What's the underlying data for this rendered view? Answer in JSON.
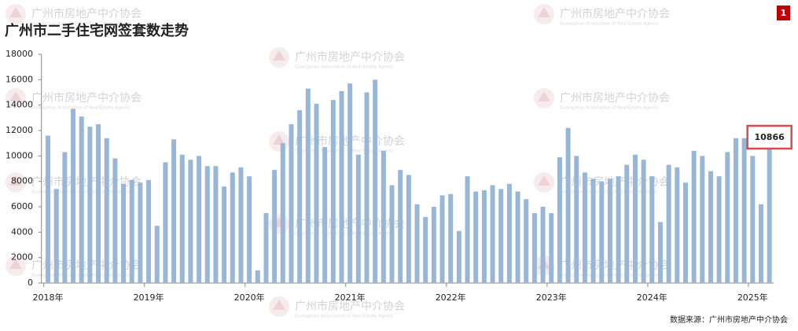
{
  "page_number": "1",
  "watermark": {
    "text": "广州市房地产中介协会",
    "subtext": "Guangzhou Association of Real Estate Agents"
  },
  "source": "数据来源：广州市房地产中介协会",
  "chart_data": {
    "type": "bar",
    "title": "广州市二手住宅网签套数走势",
    "categories": [
      "2018年",
      null,
      null,
      null,
      null,
      null,
      null,
      null,
      null,
      null,
      null,
      null,
      "2019年",
      null,
      null,
      null,
      null,
      null,
      null,
      null,
      null,
      null,
      null,
      null,
      "2020年",
      null,
      null,
      null,
      null,
      null,
      null,
      null,
      null,
      null,
      null,
      null,
      "2021年",
      null,
      null,
      null,
      null,
      null,
      null,
      null,
      null,
      null,
      null,
      null,
      "2022年",
      null,
      null,
      null,
      null,
      null,
      null,
      null,
      null,
      null,
      null,
      null,
      "2023年",
      null,
      null,
      null,
      null,
      null,
      null,
      null,
      null,
      null,
      null,
      null,
      "2024年",
      null,
      null,
      null,
      null,
      null,
      null,
      null,
      null,
      null,
      null,
      null,
      "2025年",
      null,
      null
    ],
    "values": [
      11600,
      7400,
      10300,
      13700,
      13100,
      12300,
      12500,
      11400,
      9800,
      7800,
      8100,
      7900,
      8100,
      4500,
      9500,
      11300,
      10100,
      9700,
      10000,
      9200,
      9200,
      7600,
      8700,
      9100,
      8400,
      1000,
      5500,
      8900,
      11000,
      12500,
      13600,
      15300,
      14100,
      10700,
      14400,
      15100,
      15700,
      10100,
      15000,
      16000,
      10400,
      7700,
      8900,
      8500,
      6200,
      5200,
      6000,
      6900,
      7000,
      4100,
      8400,
      7200,
      7300,
      7700,
      7400,
      7800,
      7200,
      6600,
      5500,
      6000,
      5500,
      9900,
      12200,
      10000,
      8700,
      8200,
      8000,
      8200,
      8400,
      9300,
      10100,
      9700,
      8400,
      4800,
      9300,
      9100,
      7900,
      10400,
      10000,
      8800,
      8400,
      10300,
      11400,
      11400,
      10000,
      6200,
      10866
    ],
    "color": "#98b6d8",
    "ylim": [
      0,
      18000
    ],
    "yticks": [
      0,
      2000,
      4000,
      6000,
      8000,
      10000,
      12000,
      14000,
      16000,
      18000
    ],
    "highlight_color": "#e0474c"
  }
}
